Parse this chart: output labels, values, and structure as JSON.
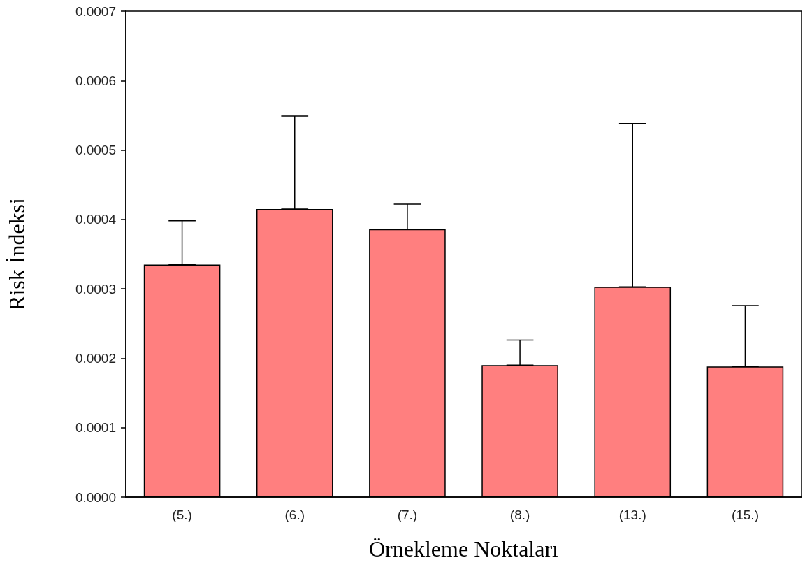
{
  "chart_data": {
    "type": "bar",
    "xlabel": "Örnekleme Noktaları",
    "ylabel": "Risk İndeksi",
    "categories": [
      "(5.)",
      "(6.)",
      "(7.)",
      "(8.)",
      "(13.)",
      "(15.)"
    ],
    "series": [
      {
        "color": "#ff7f7f",
        "values": [
          0.000335,
          0.000415,
          0.000386,
          0.00019,
          0.000303,
          0.000188
        ],
        "errors": [
          [
            0.000335,
            0.000398
          ],
          [
            0.000415,
            0.000549
          ],
          [
            0.000386,
            0.000422
          ],
          [
            0.00019,
            0.000226
          ],
          [
            0.000303,
            0.000538
          ],
          [
            0.000188,
            0.000276
          ]
        ]
      }
    ],
    "ylim": [
      0,
      0.0007
    ],
    "yticks": [
      {
        "value": 0,
        "label": "0.0000"
      },
      {
        "value": 0.0001,
        "label": "0.0001"
      },
      {
        "value": 0.0002,
        "label": "0.0002"
      },
      {
        "value": 0.0003,
        "label": "0.0003"
      },
      {
        "value": 0.0004,
        "label": "0.0004"
      },
      {
        "value": 0.0005,
        "label": "0.0005"
      },
      {
        "value": 0.0006,
        "label": "0.0006"
      },
      {
        "value": 0.0007,
        "label": "0.0007"
      }
    ],
    "grid": false
  }
}
